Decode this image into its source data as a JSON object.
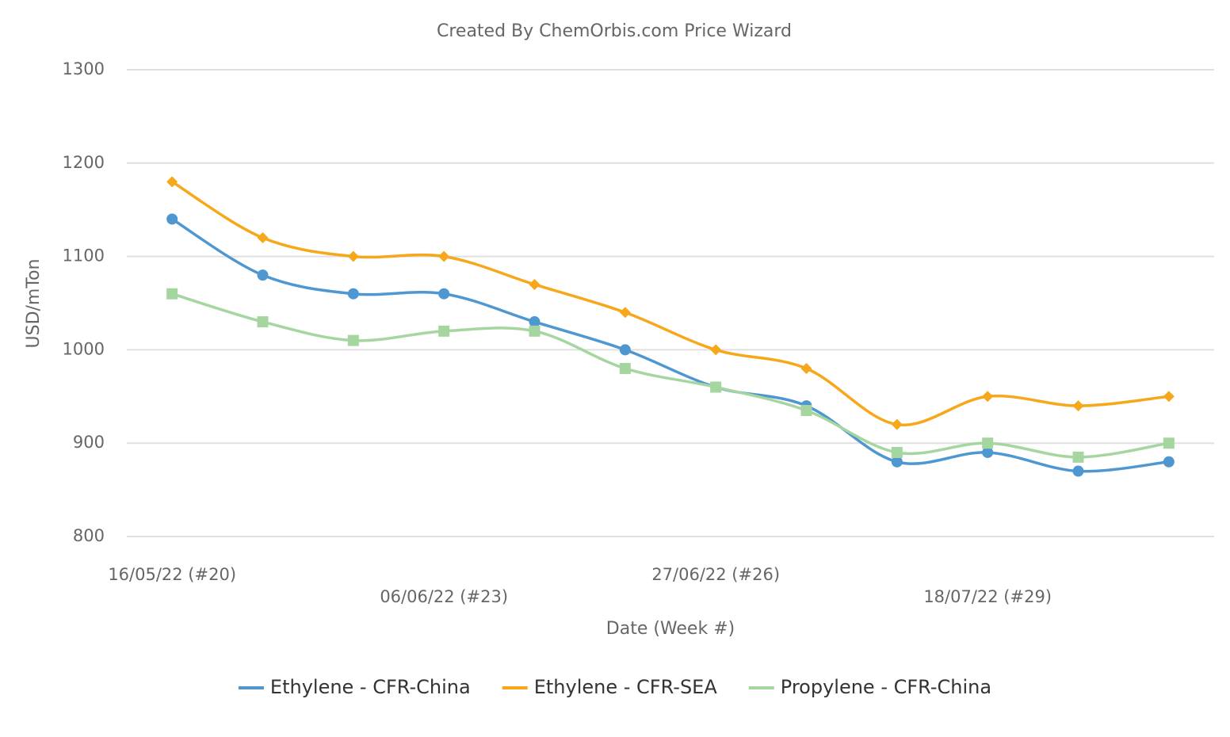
{
  "chart_data": {
    "type": "line",
    "title": "Created By ChemOrbis.com Price Wizard",
    "x_label": "Date (Week #)",
    "y_label": "USD/mTon",
    "categories": [
      "16/05/22 (#20)",
      null,
      null,
      "06/06/22 (#23)",
      null,
      null,
      "27/06/22 (#26)",
      null,
      null,
      "18/07/22 (#29)",
      null,
      null
    ],
    "series": [
      {
        "name": "Ethylene - CFR-China",
        "color": "#4e97d1",
        "marker": "circle",
        "values": [
          1140,
          1080,
          1060,
          1060,
          1030,
          1000,
          960,
          940,
          880,
          890,
          870,
          880
        ]
      },
      {
        "name": "Ethylene - CFR-SEA",
        "color": "#f6a71a",
        "marker": "diamond",
        "values": [
          1180,
          1120,
          1100,
          1100,
          1070,
          1040,
          1000,
          980,
          920,
          950,
          940,
          950
        ]
      },
      {
        "name": "Propylene - CFR-China",
        "color": "#a5d6a0",
        "marker": "square",
        "values": [
          1060,
          1030,
          1010,
          1020,
          1020,
          980,
          960,
          935,
          890,
          900,
          885,
          900
        ]
      }
    ],
    "ylim": [
      800,
      1300
    ],
    "yticks": [
      800,
      900,
      1000,
      1100,
      1200,
      1300
    ],
    "grid": true,
    "legend": "bottom"
  }
}
